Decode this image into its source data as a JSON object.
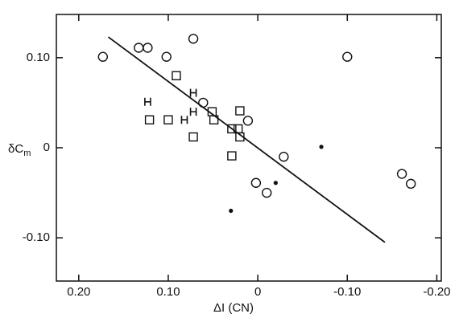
{
  "chart_data": {
    "type": "scatter",
    "xlabel": "ΔI (CN)",
    "ylabel": {
      "main": "δC",
      "sub": "m"
    },
    "xlim": [
      0.225,
      -0.205
    ],
    "ylim": [
      -0.148,
      0.148
    ],
    "xticks": [
      {
        "value": 0.2,
        "label": "0.20"
      },
      {
        "value": 0.1,
        "label": "0.10"
      },
      0,
      {
        "value": -0.1,
        "label": "-0.10"
      },
      {
        "value": -0.2,
        "label": "-0.20"
      }
    ],
    "yticks": [
      {
        "value": 0.1,
        "label": "0.10"
      },
      0,
      {
        "value": -0.1,
        "label": "-0.10"
      }
    ],
    "color": "#111111",
    "series": [
      {
        "marker": "circle",
        "x": [
          0.173,
          0.133,
          0.123,
          0.102,
          0.072,
          0.061,
          0.011,
          0.002,
          -0.01,
          -0.029,
          -0.1,
          -0.161,
          -0.171
        ],
        "values": [
          0.101,
          0.111,
          0.111,
          0.101,
          0.121,
          0.05,
          0.03,
          -0.039,
          -0.05,
          -0.01,
          0.101,
          -0.029,
          -0.04
        ]
      },
      {
        "marker": "square",
        "x": [
          0.091,
          0.121,
          0.1,
          0.072,
          0.051,
          0.049,
          0.029,
          0.02,
          0.022,
          0.02,
          0.029
        ],
        "values": [
          0.08,
          0.031,
          0.031,
          0.012,
          0.04,
          0.031,
          0.021,
          0.041,
          0.021,
          0.012,
          -0.009
        ]
      },
      {
        "marker": "H",
        "x": [
          0.123,
          0.072,
          0.072,
          0.082
        ],
        "values": [
          0.051,
          0.061,
          0.04,
          0.031
        ]
      },
      {
        "marker": "dot",
        "x": [
          -0.02,
          -0.071,
          0.03
        ],
        "values": [
          -0.039,
          0.001,
          -0.07
        ]
      }
    ],
    "fit_line": {
      "x": [
        0.167,
        -0.142
      ],
      "values": [
        0.123,
        -0.105
      ]
    }
  }
}
